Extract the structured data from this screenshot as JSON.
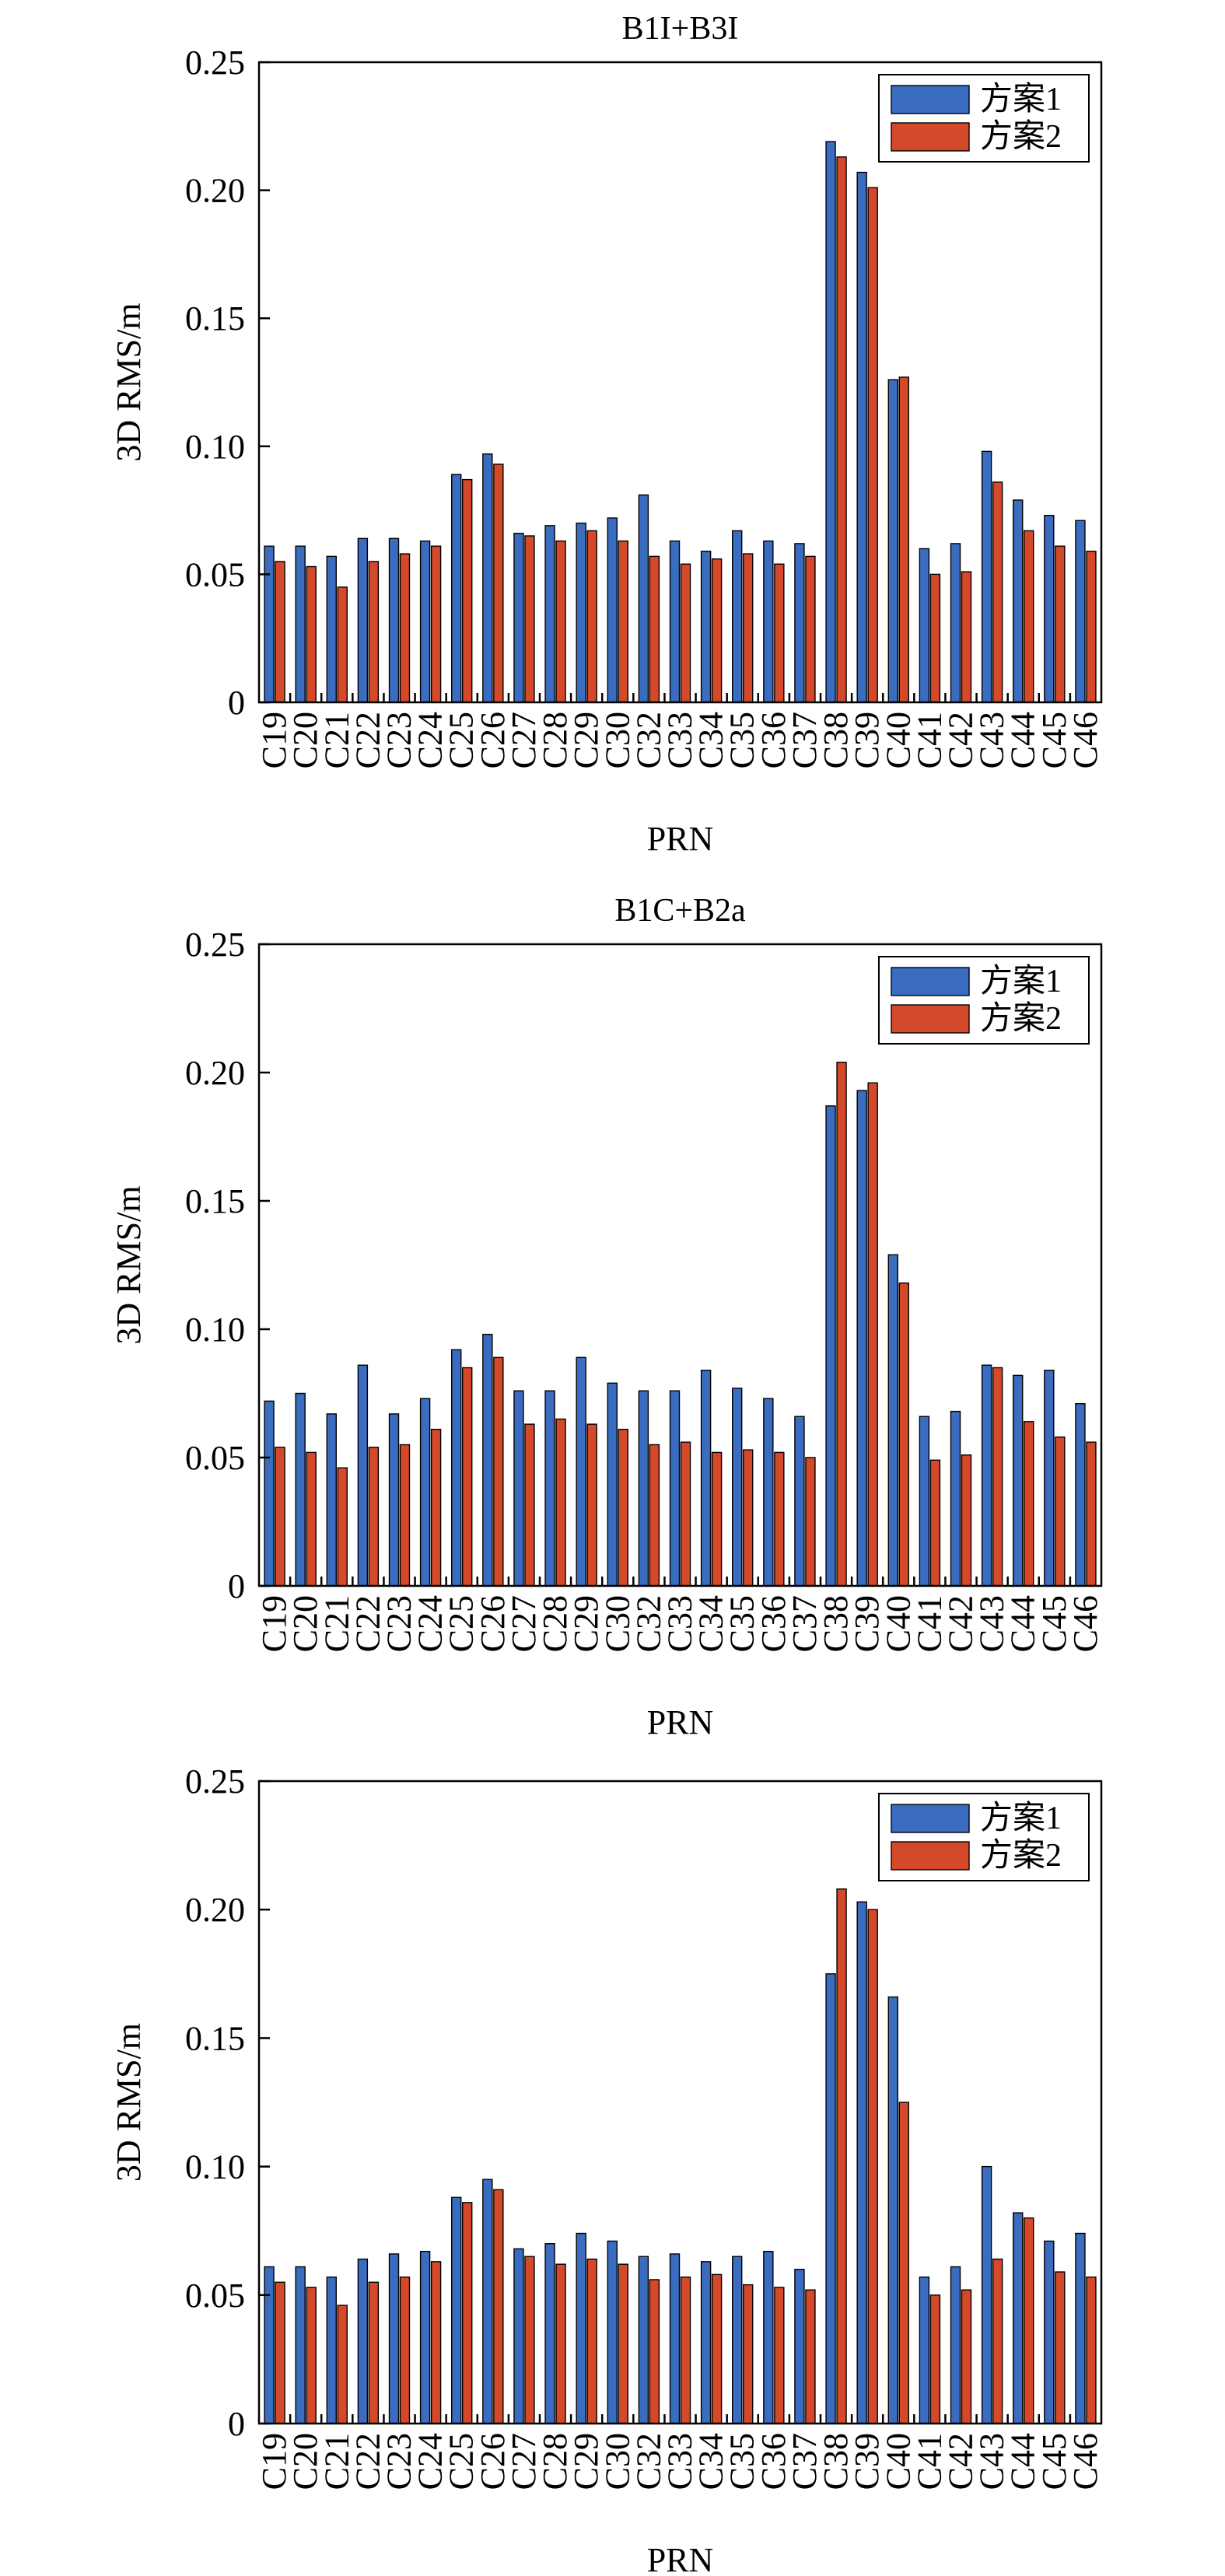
{
  "colors": {
    "scheme1": "#3A6CC0",
    "scheme2": "#D4492A",
    "axis": "#000000",
    "background": "#ffffff"
  },
  "chart_data": [
    {
      "type": "bar",
      "title": "B1I+B3I",
      "xlabel": "PRN",
      "ylabel": "3D RMS/m",
      "ylim": [
        0,
        0.25
      ],
      "yticks": [
        0,
        0.05,
        0.1,
        0.15,
        0.2,
        0.25
      ],
      "ytick_labels": [
        "0",
        "0.05",
        "0.10",
        "0.15",
        "0.20",
        "0.25"
      ],
      "legend_position": "top-right",
      "grid": false,
      "categories": [
        "C19",
        "C20",
        "C21",
        "C22",
        "C23",
        "C24",
        "C25",
        "C26",
        "C27",
        "C28",
        "C29",
        "C30",
        "C32",
        "C33",
        "C34",
        "C35",
        "C36",
        "C37",
        "C38",
        "C39",
        "C40",
        "C41",
        "C42",
        "C43",
        "C44",
        "C45",
        "C46"
      ],
      "series": [
        {
          "name": "方案1",
          "values": [
            0.061,
            0.061,
            0.057,
            0.064,
            0.064,
            0.063,
            0.089,
            0.097,
            0.066,
            0.069,
            0.07,
            0.072,
            0.081,
            0.063,
            0.059,
            0.067,
            0.063,
            0.062,
            0.219,
            0.207,
            0.126,
            0.06,
            0.062,
            0.098,
            0.079,
            0.073,
            0.071
          ]
        },
        {
          "name": "方案2",
          "values": [
            0.055,
            0.053,
            0.045,
            0.055,
            0.058,
            0.061,
            0.087,
            0.093,
            0.065,
            0.063,
            0.067,
            0.063,
            0.057,
            0.054,
            0.056,
            0.058,
            0.054,
            0.057,
            0.213,
            0.201,
            0.127,
            0.05,
            0.051,
            0.086,
            0.067,
            0.061,
            0.059
          ]
        }
      ]
    },
    {
      "type": "bar",
      "title": "B1C+B2a",
      "xlabel": "PRN",
      "ylabel": "3D RMS/m",
      "ylim": [
        0,
        0.25
      ],
      "yticks": [
        0,
        0.05,
        0.1,
        0.15,
        0.2,
        0.25
      ],
      "ytick_labels": [
        "0",
        "0.05",
        "0.10",
        "0.15",
        "0.20",
        "0.25"
      ],
      "legend_position": "top-right",
      "grid": false,
      "categories": [
        "C19",
        "C20",
        "C21",
        "C22",
        "C23",
        "C24",
        "C25",
        "C26",
        "C27",
        "C28",
        "C29",
        "C30",
        "C32",
        "C33",
        "C34",
        "C35",
        "C36",
        "C37",
        "C38",
        "C39",
        "C40",
        "C41",
        "C42",
        "C43",
        "C44",
        "C45",
        "C46"
      ],
      "series": [
        {
          "name": "方案1",
          "values": [
            0.072,
            0.075,
            0.067,
            0.086,
            0.067,
            0.073,
            0.092,
            0.098,
            0.076,
            0.076,
            0.089,
            0.079,
            0.076,
            0.076,
            0.084,
            0.077,
            0.073,
            0.066,
            0.187,
            0.193,
            0.129,
            0.066,
            0.068,
            0.086,
            0.082,
            0.084,
            0.071
          ]
        },
        {
          "name": "方案2",
          "values": [
            0.054,
            0.052,
            0.046,
            0.054,
            0.055,
            0.061,
            0.085,
            0.089,
            0.063,
            0.065,
            0.063,
            0.061,
            0.055,
            0.056,
            0.052,
            0.053,
            0.052,
            0.05,
            0.204,
            0.196,
            0.118,
            0.049,
            0.051,
            0.085,
            0.064,
            0.058,
            0.056
          ]
        }
      ]
    },
    {
      "type": "bar",
      "title": "",
      "xlabel": "PRN",
      "ylabel": "3D RMS/m",
      "ylim": [
        0,
        0.25
      ],
      "yticks": [
        0,
        0.05,
        0.1,
        0.15,
        0.2,
        0.25
      ],
      "ytick_labels": [
        "0",
        "0.05",
        "0.10",
        "0.15",
        "0.20",
        "0.25"
      ],
      "legend_position": "top-right",
      "grid": false,
      "categories": [
        "C19",
        "C20",
        "C21",
        "C22",
        "C23",
        "C24",
        "C25",
        "C26",
        "C27",
        "C28",
        "C29",
        "C30",
        "C32",
        "C33",
        "C34",
        "C35",
        "C36",
        "C37",
        "C38",
        "C39",
        "C40",
        "C41",
        "C42",
        "C43",
        "C44",
        "C45",
        "C46"
      ],
      "series": [
        {
          "name": "方案1",
          "values": [
            0.061,
            0.061,
            0.057,
            0.064,
            0.066,
            0.067,
            0.088,
            0.095,
            0.068,
            0.07,
            0.074,
            0.071,
            0.065,
            0.066,
            0.063,
            0.065,
            0.067,
            0.06,
            0.175,
            0.203,
            0.166,
            0.057,
            0.061,
            0.1,
            0.082,
            0.071,
            0.074
          ]
        },
        {
          "name": "方案2",
          "values": [
            0.055,
            0.053,
            0.046,
            0.055,
            0.057,
            0.063,
            0.086,
            0.091,
            0.065,
            0.062,
            0.064,
            0.062,
            0.056,
            0.057,
            0.058,
            0.054,
            0.053,
            0.052,
            0.208,
            0.2,
            0.125,
            0.05,
            0.052,
            0.064,
            0.08,
            0.059,
            0.057
          ]
        }
      ]
    }
  ]
}
